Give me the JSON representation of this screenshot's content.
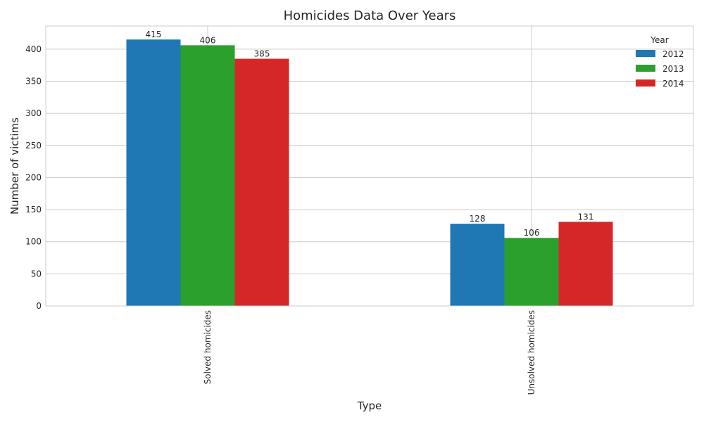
{
  "chart_data": {
    "type": "bar",
    "title": "Homicides Data Over Years",
    "xlabel": "Type",
    "ylabel": "Number of victims",
    "categories": [
      "Solved homicides",
      "Unsolved homicides"
    ],
    "series": [
      {
        "name": "2012",
        "values": [
          415,
          128
        ],
        "color": "#1f77b4"
      },
      {
        "name": "2013",
        "values": [
          406,
          106
        ],
        "color": "#2ca02c"
      },
      {
        "name": "2014",
        "values": [
          385,
          131
        ],
        "color": "#d62728"
      }
    ],
    "ylim": [
      0,
      436
    ],
    "yticks": [
      0,
      50,
      100,
      150,
      200,
      250,
      300,
      350,
      400
    ],
    "grid": true,
    "legend": {
      "title": "Year",
      "placement": "top-right"
    }
  }
}
